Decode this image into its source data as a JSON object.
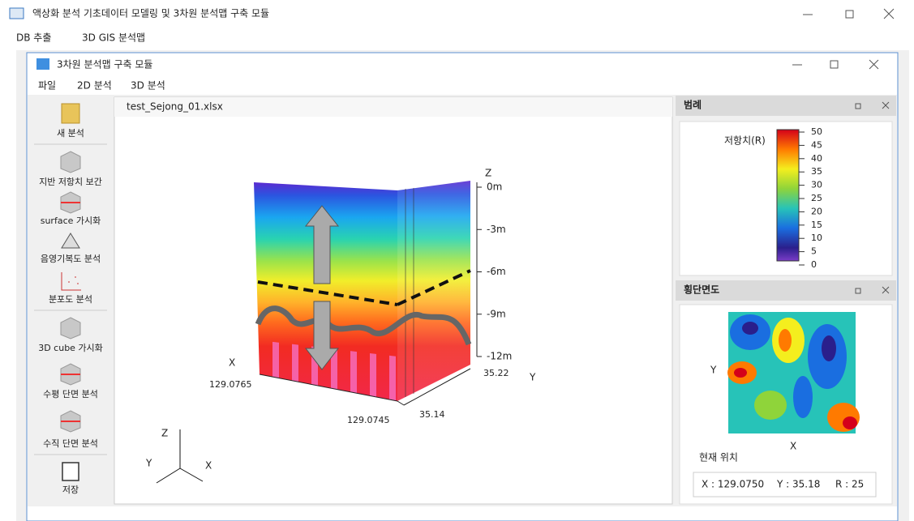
{
  "window": {
    "title": "액상화 분석 기초데이터 모델링 및 3차원 분석맵 구축 모듈",
    "menu": [
      "DB 추출",
      "3D GIS 분석맵"
    ]
  },
  "inner_window": {
    "title": "3차원 분석맵 구축 모듈",
    "menu": [
      "파일",
      "2D 분석",
      "3D 분석"
    ]
  },
  "toolbar": [
    "새 분석",
    "지반 저항치 보간",
    "surface 가시화",
    "음영기복도 분석",
    "분포도 분석",
    "3D cube 가시화",
    "수평 단면 분석",
    "수직 단면 분석",
    "저장"
  ],
  "viewer": {
    "tab": "test_Sejong_01.xlsx",
    "z_axis": "Z",
    "depth_labels": [
      "0m",
      "-3m",
      "-6m",
      "-9m",
      "-12m"
    ],
    "x_axis": "X",
    "x_labels": [
      "129.0765",
      "129.0745"
    ],
    "y_axis": "Y",
    "y_labels": [
      "35.22",
      "35.14"
    ],
    "gizmo": {
      "z": "Z",
      "y": "Y",
      "x": "X"
    }
  },
  "legend_panel": {
    "title": "범례",
    "label": "저항치(R)",
    "ticks": [
      50,
      45,
      40,
      35,
      30,
      25,
      20,
      15,
      10,
      5,
      0
    ]
  },
  "section_panel": {
    "title": "횡단면도",
    "y_axis": "Y",
    "x_axis": "X",
    "position_title": "현재 위치",
    "position": [
      "X : 129.0750",
      "Y : 35.18",
      "R : 25"
    ]
  }
}
